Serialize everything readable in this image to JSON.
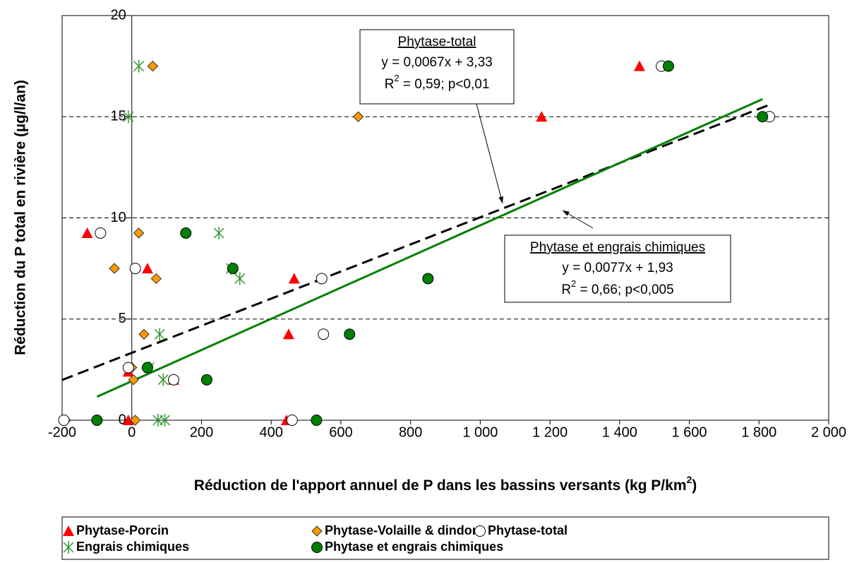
{
  "chart_data": {
    "type": "scatter",
    "x_label": {
      "text": "Réduction de l'apport annuel de P dans les bassins versants (kg P/km",
      "sup": "2",
      "after": ")"
    },
    "y_label": "Réduction du P total en rivière (µg/l/an)",
    "xlim": [
      -200,
      2000
    ],
    "ylim": [
      0,
      20
    ],
    "xticks": [
      -200,
      0,
      200,
      400,
      600,
      800,
      {
        "value": 1000,
        "label": "1 000"
      },
      {
        "value": 1200,
        "label": "1 200"
      },
      {
        "value": 1400,
        "label": "1 400"
      },
      {
        "value": 1600,
        "label": "1 600"
      },
      {
        "value": 1800,
        "label": "1 800"
      },
      {
        "value": 2000,
        "label": "2 000"
      }
    ],
    "yticks": [
      0,
      5,
      10,
      15,
      20
    ],
    "grid": true,
    "legend": "bottom",
    "series": [
      {
        "name": "Phytase-Porcin",
        "color": "#ff0000",
        "marker": "triangle",
        "x": [
          -128,
          45,
          466,
          450,
          -10,
          120,
          -10,
          444,
          1176,
          1457
        ],
        "values": [
          9.25,
          7.5,
          7.0,
          4.25,
          2.4,
          2.0,
          0,
          0,
          15,
          17.5
        ]
      },
      {
        "name": "Phytase-Volaille & dindon",
        "color": "#ff9900",
        "marker": "diamond",
        "x": [
          60,
          650,
          20,
          -50,
          70,
          35,
          0,
          5,
          -190,
          10
        ],
        "values": [
          17.5,
          15,
          9.25,
          7.5,
          7.0,
          4.25,
          2.6,
          2.0,
          0,
          0
        ]
      },
      {
        "name": "Phytase-total",
        "color": "#ffffff",
        "marker": "circle",
        "x": [
          1520,
          1830,
          -90,
          10,
          545,
          550,
          -10,
          120,
          -195,
          460
        ],
        "values": [
          17.5,
          15,
          9.25,
          7.5,
          7.0,
          4.25,
          2.6,
          2.0,
          0,
          0
        ]
      },
      {
        "name": "Engrais chimiques",
        "color": "#339933",
        "marker": "asterisk",
        "x": [
          20,
          -10,
          250,
          285,
          310,
          80,
          50,
          90,
          75,
          95
        ],
        "values": [
          17.5,
          15,
          9.25,
          7.5,
          7.0,
          4.25,
          2.6,
          2.0,
          0,
          0
        ]
      },
      {
        "name": "Phytase et engrais chimiques",
        "color": "#008000",
        "marker": "circle",
        "x": [
          1540,
          1810,
          155,
          290,
          850,
          625,
          45,
          215,
          -100,
          530
        ],
        "values": [
          17.5,
          15,
          9.25,
          7.5,
          7.0,
          4.25,
          2.6,
          2.0,
          0,
          0
        ]
      }
    ],
    "trendlines": [
      {
        "color": "#000000",
        "dashed": true,
        "x": [
          -200,
          1830
        ],
        "values": [
          1.99,
          15.59
        ]
      },
      {
        "color": "#008000",
        "dashed": false,
        "x": [
          -100,
          1810
        ],
        "values": [
          1.16,
          15.87
        ]
      }
    ],
    "annotations": [
      {
        "title": "Phytase-total",
        "equation": "y = 0,0067x + 3,33",
        "r2": {
          "base": "R",
          "sup": "2",
          "rest": " = 0,59; p<0,01"
        }
      },
      {
        "title": "Phytase et engrais chimiques",
        "equation": "y = 0,0077x + 1,93",
        "r2": {
          "base": "R",
          "sup": "2",
          "rest": " = 0,66; p<0,005"
        }
      }
    ]
  }
}
